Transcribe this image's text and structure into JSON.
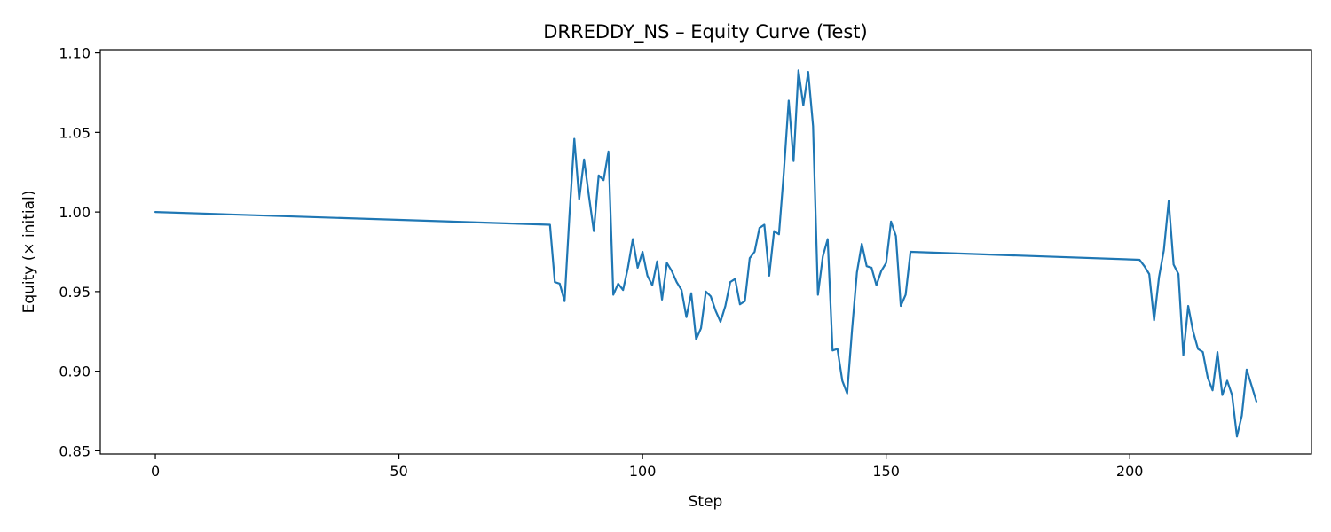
{
  "chart_data": {
    "type": "line",
    "title": "DRREDDY_NS – Equity Curve (Test)",
    "xlabel": "Step",
    "ylabel": "Equity (× initial)",
    "xlim": [
      -11.3,
      237.3
    ],
    "ylim": [
      0.848,
      1.102
    ],
    "xticks": [
      0,
      50,
      100,
      150,
      200
    ],
    "yticks": [
      0.85,
      0.9,
      0.95,
      1.0,
      1.05,
      1.1
    ],
    "ytick_labels": [
      "0.85",
      "0.90",
      "0.95",
      "1.00",
      "1.05",
      "1.10"
    ],
    "grid": false,
    "legend": "none",
    "series": [
      {
        "color": "#1f77b4",
        "x": [
          0,
          81,
          82,
          83,
          84,
          85,
          86,
          87,
          88,
          89,
          90,
          91,
          92,
          93,
          94,
          95,
          96,
          97,
          98,
          99,
          100,
          101,
          102,
          103,
          104,
          105,
          106,
          107,
          108,
          109,
          110,
          111,
          112,
          113,
          114,
          115,
          116,
          117,
          118,
          119,
          120,
          121,
          122,
          123,
          124,
          125,
          126,
          127,
          128,
          129,
          130,
          131,
          132,
          133,
          134,
          135,
          136,
          137,
          138,
          139,
          140,
          141,
          142,
          143,
          144,
          145,
          146,
          147,
          148,
          149,
          150,
          151,
          152,
          153,
          154,
          155,
          202,
          203,
          204,
          205,
          206,
          207,
          208,
          209,
          210,
          211,
          212,
          213,
          214,
          215,
          216,
          217,
          218,
          219,
          220,
          221,
          222,
          223,
          224,
          225,
          226
        ],
        "y": [
          1.0,
          0.992,
          0.956,
          0.955,
          0.944,
          0.998,
          1.046,
          1.008,
          1.033,
          1.01,
          0.988,
          1.023,
          1.02,
          1.038,
          0.948,
          0.955,
          0.951,
          0.965,
          0.983,
          0.965,
          0.975,
          0.96,
          0.954,
          0.969,
          0.945,
          0.968,
          0.963,
          0.956,
          0.951,
          0.934,
          0.949,
          0.92,
          0.927,
          0.95,
          0.947,
          0.938,
          0.931,
          0.941,
          0.956,
          0.958,
          0.942,
          0.944,
          0.971,
          0.975,
          0.99,
          0.992,
          0.96,
          0.988,
          0.986,
          1.025,
          1.07,
          1.032,
          1.089,
          1.067,
          1.088,
          1.054,
          0.948,
          0.972,
          0.983,
          0.913,
          0.914,
          0.894,
          0.886,
          0.926,
          0.962,
          0.98,
          0.966,
          0.965,
          0.954,
          0.963,
          0.968,
          0.994,
          0.985,
          0.941,
          0.948,
          0.975,
          0.97,
          0.966,
          0.961,
          0.932,
          0.959,
          0.976,
          1.007,
          0.967,
          0.961,
          0.91,
          0.941,
          0.925,
          0.914,
          0.912,
          0.896,
          0.888,
          0.912,
          0.885,
          0.894,
          0.885,
          0.859,
          0.872,
          0.901,
          0.891,
          0.881
        ]
      }
    ]
  }
}
